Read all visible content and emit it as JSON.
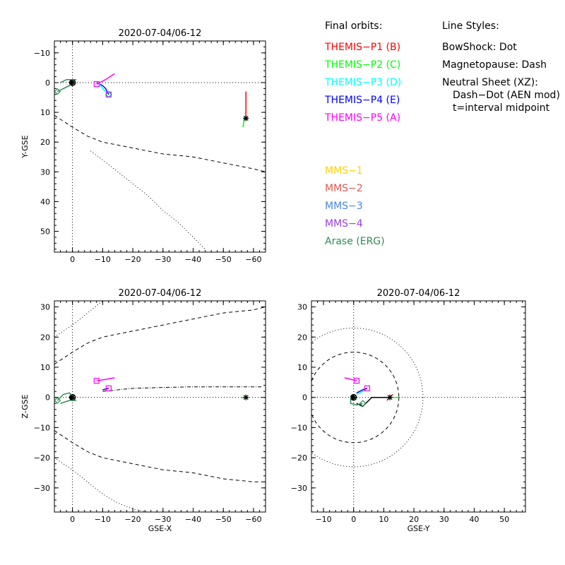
{
  "legend_orbits": {
    "heading": "Final orbits:",
    "items": [
      {
        "label": "THEMIS−P1 (B)",
        "color": "#ff0000"
      },
      {
        "label": "THEMIS−P2 (C)",
        "color": "#00ff00"
      },
      {
        "label": "THEMIS−P3 (D)",
        "color": "#00ffff"
      },
      {
        "label": "THEMIS−P4 (E)",
        "color": "#0000ff"
      },
      {
        "label": "THEMIS−P5 (A)",
        "color": "#ff00ff"
      },
      {
        "label": "MMS−1",
        "color": "#ffd200"
      },
      {
        "label": "MMS−2",
        "color": "#e05a50"
      },
      {
        "label": "MMS−3",
        "color": "#4a86d9"
      },
      {
        "label": "MMS−4",
        "color": "#9b40e0"
      },
      {
        "label": "Arase (ERG)",
        "color": "#2e8b57"
      }
    ]
  },
  "legend_styles": {
    "heading": "Line Styles:",
    "lines": [
      "BowShock: Dot",
      "Magnetopause: Dash",
      "Neutral Sheet (XZ):",
      "Dash−Dot (AEN mod)",
      "t=interval midpoint"
    ]
  },
  "chart_data": [
    {
      "type": "line",
      "title": "2020-07-04/06-12",
      "xlabel": "",
      "ylabel": "Y-GSE",
      "xlim": [
        6,
        -64
      ],
      "ylim": [
        -14,
        57
      ],
      "x_ticks": [
        0,
        -10,
        -20,
        -30,
        -40,
        -50,
        -60
      ],
      "x_ticklabels": [
        "0",
        "−10",
        "−20",
        "−30",
        "−40",
        "−50",
        "−60"
      ],
      "y_ticks": [
        -10,
        0,
        10,
        20,
        30,
        40,
        50
      ],
      "y_ticklabels": [
        "−10",
        "0",
        "10",
        "20",
        "30",
        "40",
        "50"
      ],
      "boundaries": {
        "bow_shock": [
          [
            -6,
            23
          ],
          [
            -10,
            26
          ],
          [
            -15,
            30
          ],
          [
            -20,
            34
          ],
          [
            -25,
            38
          ],
          [
            -30,
            43
          ],
          [
            -35,
            47
          ],
          [
            -40,
            52
          ],
          [
            -42,
            54
          ],
          [
            -44,
            56
          ]
        ],
        "magnetopause": [
          [
            6,
            11
          ],
          [
            0,
            15
          ],
          [
            -5,
            18
          ],
          [
            -10,
            20
          ],
          [
            -20,
            22
          ],
          [
            -30,
            24
          ],
          [
            -40,
            25
          ],
          [
            -50,
            27
          ],
          [
            -60,
            29
          ],
          [
            -64,
            30
          ]
        ]
      },
      "series": [
        {
          "color": "#ff0000",
          "points": [
            [
              -57.5,
              3
            ],
            [
              -57.5,
              9
            ],
            [
              -57.5,
              12
            ]
          ]
        },
        {
          "color": "#00ff00",
          "points": [
            [
              -57,
              12
            ],
            [
              -56.5,
              15
            ]
          ]
        },
        {
          "color": "#0000ff",
          "points": [
            [
              -8,
              0
            ],
            [
              -10,
              1
            ],
            [
              -11,
              2
            ],
            [
              -12,
              4
            ]
          ]
        },
        {
          "color": "#00ffff",
          "points": [
            [
              -8.5,
              0
            ],
            [
              -10,
              2
            ],
            [
              -11,
              3
            ]
          ]
        },
        {
          "color": "#ff00ff",
          "points": [
            [
              -8,
              0.5
            ],
            [
              -11,
              -1
            ],
            [
              -14,
              -3
            ]
          ]
        },
        {
          "color": "#2e8b57",
          "points": [
            [
              5,
              3
            ],
            [
              3,
              2
            ],
            [
              1,
              1
            ],
            [
              0,
              0
            ],
            [
              -1,
              -1
            ],
            [
              0,
              -1
            ],
            [
              2,
              -1
            ],
            [
              4,
              0
            ]
          ]
        }
      ],
      "markers": [
        {
          "shape": "asterisk",
          "color": "#000000",
          "x": -57.5,
          "y": 12
        },
        {
          "shape": "asterisk",
          "color": "#000000",
          "x": 0,
          "y": 0
        },
        {
          "shape": "square",
          "color": "#ff00ff",
          "x": -8,
          "y": 0.5
        },
        {
          "shape": "square",
          "color": "#ff00ff",
          "x": -12,
          "y": 4
        },
        {
          "shape": "diamond",
          "color": "#00a0a0",
          "x": -12,
          "y": 4
        },
        {
          "shape": "diamond",
          "color": "#2e8b57",
          "x": 5,
          "y": 3
        }
      ]
    },
    {
      "type": "line",
      "title": "2020-07-04/06-12",
      "xlabel": "GSE-X",
      "ylabel": "Z-GSE",
      "xlim": [
        6,
        -64
      ],
      "ylim": [
        -38,
        32
      ],
      "x_ticks": [
        0,
        -10,
        -20,
        -30,
        -40,
        -50,
        -60
      ],
      "x_ticklabels": [
        "0",
        "−10",
        "−20",
        "−30",
        "−40",
        "−50",
        "−60"
      ],
      "y_ticks": [
        -30,
        -20,
        -10,
        0,
        10,
        20,
        30
      ],
      "y_ticklabels": [
        "−30",
        "−20",
        "−10",
        "0",
        "10",
        "20",
        "30"
      ],
      "boundaries": {
        "bow_shock_upper": [
          [
            6,
            20
          ],
          [
            0,
            24
          ],
          [
            -5,
            28
          ],
          [
            -10,
            32
          ]
        ],
        "bow_shock_lower": [
          [
            6,
            -20
          ],
          [
            0,
            -24
          ],
          [
            -5,
            -28
          ],
          [
            -10,
            -32
          ],
          [
            -15,
            -35
          ],
          [
            -20,
            -37
          ],
          [
            -25,
            -38
          ]
        ],
        "magnetopause_upper": [
          [
            6,
            11
          ],
          [
            0,
            15
          ],
          [
            -5,
            18
          ],
          [
            -10,
            20
          ],
          [
            -20,
            22
          ],
          [
            -30,
            24
          ],
          [
            -40,
            26
          ],
          [
            -50,
            28
          ],
          [
            -60,
            29
          ],
          [
            -64,
            30
          ]
        ],
        "magnetopause_lower": [
          [
            6,
            -11
          ],
          [
            0,
            -15
          ],
          [
            -5,
            -18
          ],
          [
            -10,
            -20
          ],
          [
            -20,
            -22
          ],
          [
            -30,
            -24
          ],
          [
            -40,
            -25
          ],
          [
            -50,
            -27
          ],
          [
            -60,
            -28
          ],
          [
            -64,
            -28
          ]
        ],
        "neutral_sheet": [
          [
            -10,
            2
          ],
          [
            -15,
            2.5
          ],
          [
            -20,
            3
          ],
          [
            -30,
            3.3
          ],
          [
            -40,
            3.5
          ],
          [
            -50,
            3.5
          ],
          [
            -60,
            3.5
          ],
          [
            -63,
            3.5
          ]
        ]
      },
      "series": [
        {
          "color": "#000000",
          "points": [
            [
              -57.5,
              0
            ],
            [
              -57.5,
              0
            ]
          ]
        },
        {
          "color": "#ff0000",
          "points": [
            [
              -57,
              0
            ],
            [
              -58,
              0
            ]
          ]
        },
        {
          "color": "#00ff00",
          "points": [
            [
              -56,
              0
            ],
            [
              -58,
              0
            ]
          ]
        },
        {
          "color": "#ff00ff",
          "points": [
            [
              -8,
              5.5
            ],
            [
              -11,
              6
            ],
            [
              -14,
              6.5
            ]
          ]
        },
        {
          "color": "#0000ff",
          "points": [
            [
              -10,
              2.5
            ],
            [
              -12,
              3
            ]
          ]
        },
        {
          "color": "#2e8b57",
          "points": [
            [
              5,
              -1
            ],
            [
              3,
              1
            ],
            [
              1,
              1.5
            ],
            [
              0,
              0
            ],
            [
              -1,
              -1
            ],
            [
              1,
              -1
            ],
            [
              4,
              -2
            ]
          ]
        }
      ],
      "markers": [
        {
          "shape": "asterisk",
          "color": "#000000",
          "x": -57.5,
          "y": 0
        },
        {
          "shape": "asterisk",
          "color": "#000000",
          "x": 0,
          "y": 0
        },
        {
          "shape": "square",
          "color": "#ff00ff",
          "x": -8,
          "y": 5.5
        },
        {
          "shape": "square",
          "color": "#ff00ff",
          "x": -12,
          "y": 3
        },
        {
          "shape": "diamond",
          "color": "#2e8b57",
          "x": 5,
          "y": -1
        }
      ]
    },
    {
      "type": "line",
      "title": "2020-07-04/06-12",
      "xlabel": "GSE-Y",
      "ylabel": "",
      "xlim": [
        -14,
        57
      ],
      "ylim": [
        -38,
        32
      ],
      "x_ticks": [
        -10,
        0,
        10,
        20,
        30,
        40,
        50
      ],
      "x_ticklabels": [
        "−10",
        "0",
        "10",
        "20",
        "30",
        "40",
        "50"
      ],
      "y_ticks": [
        -30,
        -20,
        -10,
        0,
        10,
        20,
        30
      ],
      "y_ticklabels": [
        "−30",
        "−20",
        "−10",
        "0",
        "10",
        "20",
        "30"
      ],
      "boundaries": {
        "bow_shock_radius": 23,
        "magnetopause_radius": 15
      },
      "series": [
        {
          "color": "#000000",
          "points": [
            [
              12,
              0
            ],
            [
              9,
              0
            ],
            [
              6,
              0
            ],
            [
              3,
              -3
            ],
            [
              1,
              -2
            ]
          ]
        },
        {
          "color": "#ff0000",
          "points": [
            [
              11,
              -1
            ],
            [
              13,
              1
            ]
          ]
        },
        {
          "color": "#00ff00",
          "points": [
            [
              12,
              0
            ],
            [
              15,
              0
            ]
          ]
        },
        {
          "color": "#ff00ff",
          "points": [
            [
              -3,
              6.5
            ],
            [
              -1,
              6
            ],
            [
              1,
              5.5
            ]
          ]
        },
        {
          "color": "#0000ff",
          "points": [
            [
              1,
              1.5
            ],
            [
              3,
              2.5
            ],
            [
              4.5,
              3
            ]
          ]
        },
        {
          "color": "#00ffff",
          "points": [
            [
              1,
              1
            ],
            [
              3,
              2
            ],
            [
              4,
              2.5
            ]
          ]
        },
        {
          "color": "#2e8b57",
          "points": [
            [
              3,
              -2
            ],
            [
              1,
              -2.5
            ],
            [
              -1,
              -2
            ],
            [
              -1,
              0
            ],
            [
              0,
              0
            ],
            [
              1,
              -0.5
            ]
          ]
        }
      ],
      "markers": [
        {
          "shape": "asterisk",
          "color": "#000000",
          "x": 12,
          "y": 0
        },
        {
          "shape": "asterisk",
          "color": "#000000",
          "x": 0,
          "y": 0
        },
        {
          "shape": "square",
          "color": "#ff00ff",
          "x": 1,
          "y": 5.5
        },
        {
          "shape": "square",
          "color": "#ff00ff",
          "x": 4.5,
          "y": 3
        },
        {
          "shape": "diamond",
          "color": "#2e8b57",
          "x": 3,
          "y": -2
        }
      ]
    }
  ]
}
